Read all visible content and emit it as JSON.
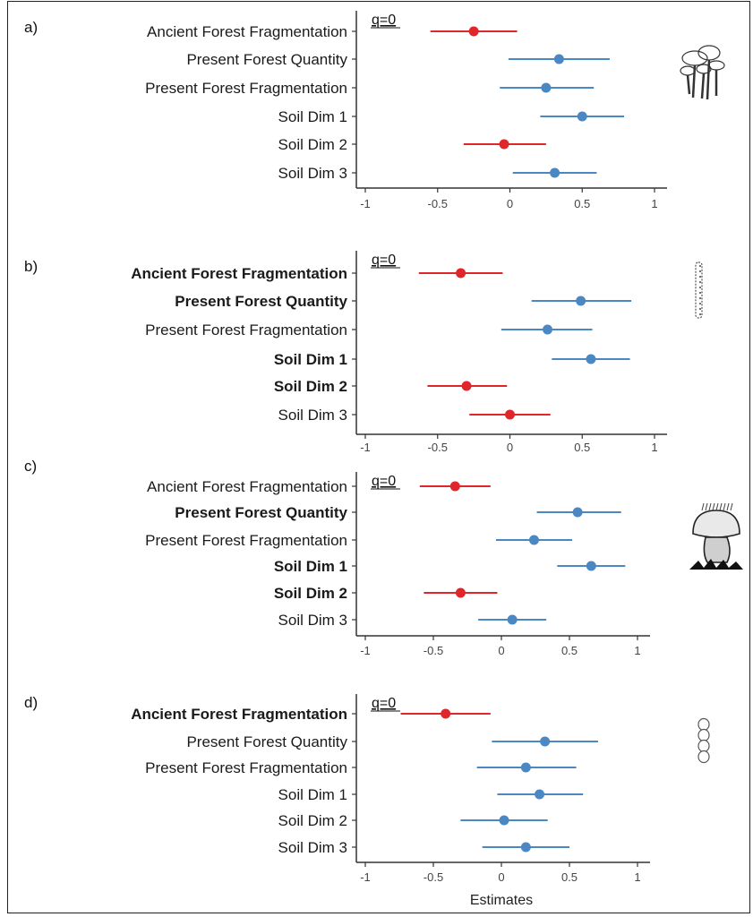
{
  "colors": {
    "negative": "#e0262b",
    "positive": "#4a87c3"
  },
  "chart_data": [
    {
      "type": "scatter",
      "panel": "a)",
      "annotation": "q=0",
      "xlabel": "",
      "xlim": [
        -1.05,
        1.05
      ],
      "xticks": [
        "-1",
        "-0.5",
        "0",
        "0.5",
        "1"
      ],
      "icon": "mushroom-cluster-icon",
      "categories": [
        "Ancient Forest Fragmentation",
        "Present Forest Quantity",
        "Present Forest Fragmentation",
        "Soil Dim 1",
        "Soil Dim 2",
        "Soil Dim 3"
      ],
      "bold": [
        false,
        false,
        false,
        false,
        false,
        false
      ],
      "estimates": [
        -0.25,
        0.34,
        0.25,
        0.5,
        -0.04,
        0.31
      ],
      "ci_low": [
        -0.55,
        -0.01,
        -0.07,
        0.21,
        -0.32,
        0.02
      ],
      "ci_high": [
        0.05,
        0.69,
        0.58,
        0.79,
        0.25,
        0.6
      ],
      "sign": [
        "negative",
        "positive",
        "positive",
        "positive",
        "negative",
        "positive"
      ]
    },
    {
      "type": "scatter",
      "panel": "b)",
      "annotation": "q=0",
      "xlabel": "",
      "xlim": [
        -1.05,
        1.05
      ],
      "xticks": [
        "-1",
        "-0.5",
        "0",
        "0.5",
        "1"
      ],
      "icon": "lichen-strand-icon",
      "categories": [
        "Ancient Forest Fragmentation",
        "Present Forest Quantity",
        "Present Forest Fragmentation",
        "Soil Dim 1",
        "Soil Dim 2",
        "Soil Dim 3"
      ],
      "bold": [
        true,
        true,
        false,
        true,
        true,
        false
      ],
      "estimates": [
        -0.34,
        0.49,
        0.26,
        0.56,
        -0.3,
        0.0
      ],
      "ci_low": [
        -0.63,
        0.15,
        -0.06,
        0.29,
        -0.57,
        -0.28
      ],
      "ci_high": [
        -0.05,
        0.84,
        0.57,
        0.83,
        -0.02,
        0.28
      ],
      "sign": [
        "negative",
        "positive",
        "positive",
        "positive",
        "negative",
        "negative"
      ]
    },
    {
      "type": "scatter",
      "panel": "c)",
      "annotation": "q=0",
      "xlabel": "",
      "xlim": [
        -1.05,
        1.05
      ],
      "xticks": [
        "-1",
        "-0.5",
        "0",
        "0.5",
        "1"
      ],
      "icon": "bolete-mushroom-icon",
      "categories": [
        "Ancient Forest Fragmentation",
        "Present Forest Quantity",
        "Present Forest Fragmentation",
        "Soil Dim 1",
        "Soil Dim 2",
        "Soil Dim 3"
      ],
      "bold": [
        false,
        true,
        false,
        true,
        true,
        false
      ],
      "estimates": [
        -0.34,
        0.56,
        0.24,
        0.66,
        -0.3,
        0.08
      ],
      "ci_low": [
        -0.6,
        0.26,
        -0.04,
        0.41,
        -0.57,
        -0.17
      ],
      "ci_high": [
        -0.08,
        0.88,
        0.52,
        0.91,
        -0.03,
        0.33
      ],
      "sign": [
        "negative",
        "positive",
        "positive",
        "positive",
        "negative",
        "positive"
      ]
    },
    {
      "type": "scatter",
      "panel": "d)",
      "annotation": "q=0",
      "xlabel": "Estimates",
      "xlim": [
        -1.05,
        1.05
      ],
      "xticks": [
        "-1",
        "-0.5",
        "0",
        "0.5",
        "1"
      ],
      "icon": "chain-cells-icon",
      "categories": [
        "Ancient Forest Fragmentation",
        "Present Forest Quantity",
        "Present Forest Fragmentation",
        "Soil Dim 1",
        "Soil Dim 2",
        "Soil Dim 3"
      ],
      "bold": [
        true,
        false,
        false,
        false,
        false,
        false
      ],
      "estimates": [
        -0.41,
        0.32,
        0.18,
        0.28,
        0.02,
        0.18
      ],
      "ci_low": [
        -0.74,
        -0.07,
        -0.18,
        -0.03,
        -0.3,
        -0.14
      ],
      "ci_high": [
        -0.08,
        0.71,
        0.55,
        0.6,
        0.34,
        0.5
      ],
      "sign": [
        "negative",
        "positive",
        "positive",
        "positive",
        "positive",
        "positive"
      ]
    }
  ]
}
